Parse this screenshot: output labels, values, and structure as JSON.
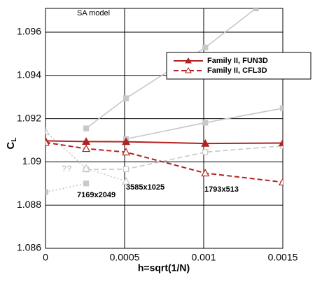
{
  "chart_data": {
    "type": "line",
    "title": "SA model",
    "x_label": "h=sqrt(1/N)",
    "y_label": "C",
    "y_label_sub": "L",
    "xlim": [
      0,
      0.0015
    ],
    "xticks": [
      0,
      0.0005,
      0.001,
      0.0015
    ],
    "ylim": [
      1.086,
      1.0971
    ],
    "yticks": [
      1.086,
      1.088,
      1.09,
      1.092,
      1.094,
      1.096
    ],
    "grid": true,
    "legend": "upper right",
    "series": [
      {
        "color": "#c8c8c8",
        "dash": "solid",
        "marker": "square",
        "x": [
          0.000257,
          0.000509,
          0.00101,
          0.00133
        ],
        "values": [
          1.09155,
          1.09294,
          1.09529,
          1.0971
        ]
      },
      {
        "color": "#c8c8c8",
        "dash": "solid",
        "marker": "square",
        "x": [
          0.000509,
          0.00101,
          0.0015
        ],
        "values": [
          1.09106,
          1.09181,
          1.09248
        ]
      },
      {
        "color": "#c8c8c8",
        "dash": "dashed",
        "marker": "open-square",
        "x": [
          0.000257,
          0.000509,
          0.00101,
          0.0015
        ],
        "values": [
          1.08965,
          1.08966,
          1.09045,
          1.09074
        ]
      },
      {
        "color": "#c8c8c8",
        "dash": "dotted",
        "marker": "open-triangle",
        "x": [
          0,
          0.000257,
          0.000509
        ],
        "values": [
          1.0914,
          1.0897,
          1.0891
        ]
      },
      {
        "color": "#c8c8c8",
        "dash": "dotted",
        "marker": "square",
        "x": [
          0,
          0.000257
        ],
        "values": [
          1.0886,
          1.089
        ]
      },
      {
        "name": "Family II, FUN3D",
        "color": "#b22222",
        "dash": "solid",
        "marker": "triangle",
        "x": [
          0,
          0.000257,
          0.000509,
          0.00101,
          0.0015
        ],
        "values": [
          1.09097,
          1.09094,
          1.09093,
          1.09085,
          1.09087
        ]
      },
      {
        "name": "Family II, CFL3D",
        "color": "#b22222",
        "dash": "dashed",
        "marker": "open-triangle",
        "x": [
          0,
          0.000257,
          0.000509,
          0.00101,
          0.0015
        ],
        "values": [
          1.0909,
          1.09061,
          1.09045,
          1.08948,
          1.08906
        ]
      }
    ],
    "annotations": [
      "7169x2049",
      "3585x1025",
      "1793x513",
      "??"
    ]
  }
}
